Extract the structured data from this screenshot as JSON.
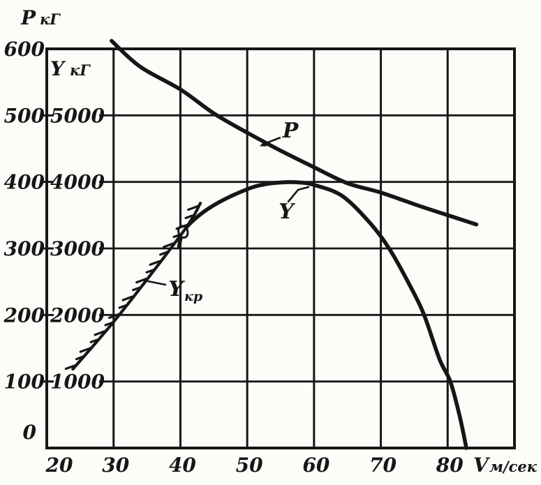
{
  "page": {
    "background": "#fcfcf9",
    "ink": "#161616"
  },
  "chart_data": {
    "type": "line",
    "grid": true,
    "legend_position": "none",
    "x_axis": {
      "title_main": "V",
      "title_unit": "м/сек",
      "range": [
        20,
        90
      ],
      "ticks": [
        20,
        30,
        40,
        50,
        60,
        70,
        80
      ],
      "tick_labels": [
        "20",
        "30",
        "40",
        "50",
        "60",
        "70",
        "80"
      ]
    },
    "y_axis_P": {
      "title_main": "Р",
      "title_unit": "кГ",
      "range": [
        0,
        600
      ],
      "ticks": [
        0,
        100,
        200,
        300,
        400,
        500,
        600
      ],
      "tick_labels": [
        "0",
        "100",
        "200",
        "300",
        "400",
        "500",
        "600"
      ]
    },
    "y_axis_Y": {
      "title_main": "Y",
      "title_unit": "кГ",
      "range": [
        0,
        6000
      ],
      "ticks": [
        1000,
        2000,
        3000,
        4000,
        5000
      ],
      "tick_labels": [
        "1000",
        "2000",
        "3000",
        "4000",
        "5000"
      ]
    },
    "series": [
      {
        "name": "P",
        "scale": "P",
        "style": "solid",
        "points": [
          [
            29.7,
            612
          ],
          [
            34,
            573
          ],
          [
            40,
            539
          ],
          [
            45,
            503
          ],
          [
            50,
            474
          ],
          [
            55,
            447
          ],
          [
            60,
            422
          ],
          [
            65,
            398
          ],
          [
            70,
            384
          ],
          [
            76,
            363
          ],
          [
            80,
            350
          ],
          [
            84.3,
            336
          ]
        ]
      },
      {
        "name": "Y",
        "scale": "Y",
        "style": "solid",
        "marker": {
          "shape": "open-circle",
          "at": [
            40.4,
            3250
          ]
        },
        "points": [
          [
            39.8,
            3030
          ],
          [
            40.4,
            3250
          ],
          [
            42.6,
            3480
          ],
          [
            45.7,
            3690
          ],
          [
            50,
            3890
          ],
          [
            52.7,
            3965
          ],
          [
            55.8,
            3995
          ],
          [
            58,
            3990
          ],
          [
            60,
            3955
          ],
          [
            64.2,
            3790
          ],
          [
            68.4,
            3380
          ],
          [
            71.3,
            2990
          ],
          [
            74.1,
            2490
          ],
          [
            76.4,
            2020
          ],
          [
            78.8,
            1330
          ],
          [
            80.4,
            1000
          ],
          [
            81.8,
            480
          ],
          [
            82.8,
            0
          ]
        ]
      },
      {
        "name": "Yкр",
        "label_main": "Y",
        "label_sub": "кр",
        "scale": "Y",
        "style": "hatched",
        "points": [
          [
            23.9,
            1185
          ],
          [
            30.8,
            1995
          ],
          [
            40.4,
            3250
          ],
          [
            43,
            3680
          ]
        ]
      }
    ]
  }
}
